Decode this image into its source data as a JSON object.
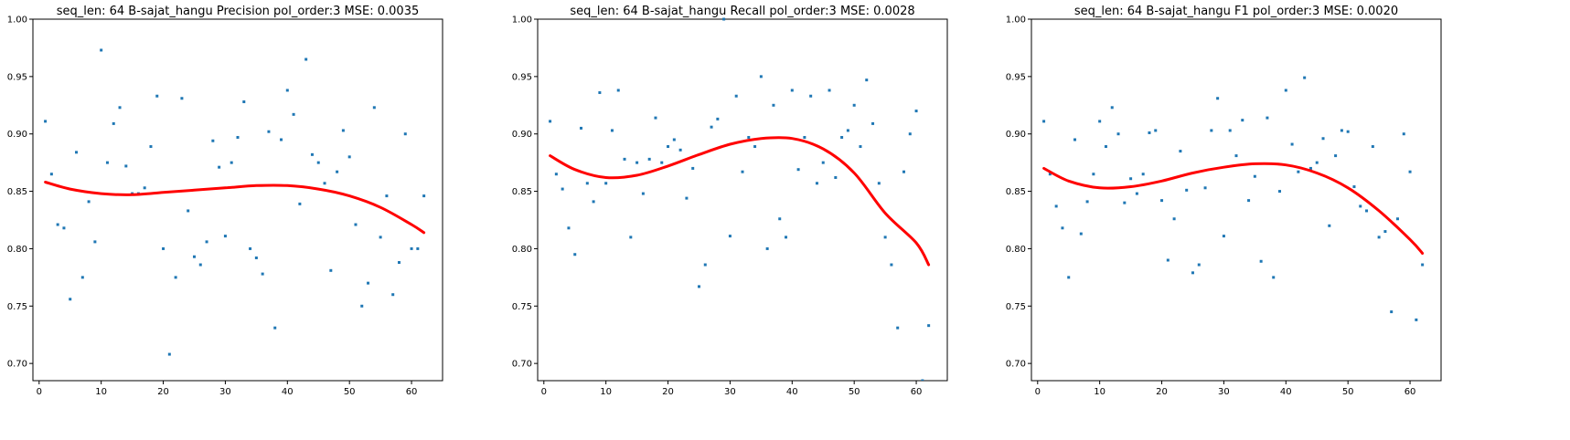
{
  "chart_data": [
    {
      "type": "scatter",
      "title": "seq_len: 64    B-sajat_hangu   Precision   pol_order:3   MSE: 0.0035",
      "xlim": [
        -1,
        65
      ],
      "ylim": [
        0.685,
        1.0
      ],
      "xticks": [
        0,
        10,
        20,
        30,
        40,
        50,
        60
      ],
      "yticks": [
        0.7,
        0.75,
        0.8,
        0.85,
        0.9,
        0.95,
        1.0
      ],
      "grid": false,
      "series": [
        {
          "kind": "points",
          "color": "#1f77b4",
          "x": [
            1,
            2,
            3,
            4,
            5,
            6,
            7,
            8,
            9,
            10,
            11,
            12,
            13,
            14,
            15,
            16,
            17,
            18,
            19,
            20,
            21,
            22,
            23,
            24,
            25,
            26,
            27,
            28,
            29,
            30,
            31,
            32,
            33,
            34,
            35,
            36,
            37,
            38,
            39,
            40,
            41,
            42,
            43,
            44,
            45,
            46,
            47,
            48,
            49,
            50,
            51,
            52,
            53,
            54,
            55,
            56,
            57,
            58,
            59,
            60,
            61,
            62
          ],
          "y": [
            0.911,
            0.865,
            0.821,
            0.818,
            0.756,
            0.884,
            0.775,
            0.841,
            0.806,
            0.973,
            0.875,
            0.909,
            0.923,
            0.872,
            0.848,
            0.848,
            0.853,
            0.889,
            0.933,
            0.8,
            0.708,
            0.775,
            0.931,
            0.833,
            0.793,
            0.786,
            0.806,
            0.894,
            0.871,
            0.811,
            0.875,
            0.897,
            0.928,
            0.8,
            0.792,
            0.778,
            0.902,
            0.731,
            0.895,
            0.938,
            0.917,
            0.839,
            0.965,
            0.882,
            0.875,
            0.857,
            0.781,
            0.867,
            0.903,
            0.88,
            0.821,
            0.75,
            0.77,
            0.923,
            0.81,
            0.846,
            0.76,
            0.788,
            0.9,
            0.8,
            0.8,
            0.846
          ]
        },
        {
          "kind": "fit",
          "color": "#ff0000",
          "x": [
            1,
            5,
            10,
            15,
            20,
            25,
            30,
            35,
            40,
            45,
            50,
            55,
            60,
            62
          ],
          "y": [
            0.858,
            0.852,
            0.848,
            0.847,
            0.849,
            0.851,
            0.853,
            0.855,
            0.855,
            0.852,
            0.846,
            0.836,
            0.821,
            0.814
          ]
        }
      ]
    },
    {
      "type": "scatter",
      "title": "seq_len: 64    B-sajat_hangu   Recall   pol_order:3   MSE: 0.0028",
      "xlim": [
        -1,
        65
      ],
      "ylim": [
        0.685,
        1.0
      ],
      "xticks": [
        0,
        10,
        20,
        30,
        40,
        50,
        60
      ],
      "yticks": [
        0.7,
        0.75,
        0.8,
        0.85,
        0.9,
        0.95,
        1.0
      ],
      "grid": false,
      "series": [
        {
          "kind": "points",
          "color": "#1f77b4",
          "x": [
            1,
            2,
            3,
            4,
            5,
            6,
            7,
            8,
            9,
            10,
            11,
            12,
            13,
            14,
            15,
            16,
            17,
            18,
            19,
            20,
            21,
            22,
            23,
            24,
            25,
            26,
            27,
            28,
            29,
            30,
            31,
            32,
            33,
            34,
            35,
            36,
            37,
            38,
            39,
            40,
            41,
            42,
            43,
            44,
            45,
            46,
            47,
            48,
            49,
            50,
            51,
            52,
            53,
            54,
            55,
            56,
            57,
            58,
            59,
            60,
            61,
            62
          ],
          "y": [
            0.911,
            0.865,
            0.852,
            0.818,
            0.795,
            0.905,
            0.857,
            0.841,
            0.936,
            0.857,
            0.903,
            0.938,
            0.878,
            0.81,
            0.875,
            0.848,
            0.878,
            0.914,
            0.875,
            0.889,
            0.895,
            0.886,
            0.844,
            0.87,
            0.767,
            0.786,
            0.906,
            0.913,
            1.0,
            0.811,
            0.933,
            0.867,
            0.897,
            0.889,
            0.95,
            0.8,
            0.925,
            0.826,
            0.81,
            0.938,
            0.869,
            0.897,
            0.933,
            0.857,
            0.875,
            0.938,
            0.862,
            0.897,
            0.903,
            0.925,
            0.889,
            0.947,
            0.909,
            0.857,
            0.81,
            0.786,
            0.731,
            0.867,
            0.9,
            0.92,
            0.685,
            0.733
          ]
        },
        {
          "kind": "fit",
          "color": "#ff0000",
          "x": [
            1,
            5,
            10,
            15,
            20,
            25,
            30,
            35,
            40,
            45,
            50,
            55,
            60,
            62
          ],
          "y": [
            0.881,
            0.869,
            0.862,
            0.864,
            0.872,
            0.882,
            0.891,
            0.896,
            0.896,
            0.887,
            0.866,
            0.831,
            0.805,
            0.786
          ]
        }
      ]
    },
    {
      "type": "scatter",
      "title": "seq_len: 64    B-sajat_hangu   F1   pol_order:3   MSE: 0.0020",
      "xlim": [
        -1,
        65
      ],
      "ylim": [
        0.685,
        1.0
      ],
      "xticks": [
        0,
        10,
        20,
        30,
        40,
        50,
        60
      ],
      "yticks": [
        0.7,
        0.75,
        0.8,
        0.85,
        0.9,
        0.95,
        1.0
      ],
      "grid": false,
      "series": [
        {
          "kind": "points",
          "color": "#1f77b4",
          "x": [
            1,
            2,
            3,
            4,
            5,
            6,
            7,
            8,
            9,
            10,
            11,
            12,
            13,
            14,
            15,
            16,
            17,
            18,
            19,
            20,
            21,
            22,
            23,
            24,
            25,
            26,
            27,
            28,
            29,
            30,
            31,
            32,
            33,
            34,
            35,
            36,
            37,
            38,
            39,
            40,
            41,
            42,
            43,
            44,
            45,
            46,
            47,
            48,
            49,
            50,
            51,
            52,
            53,
            54,
            55,
            56,
            57,
            58,
            59,
            60,
            61,
            62
          ],
          "y": [
            0.911,
            0.865,
            0.837,
            0.818,
            0.775,
            0.895,
            0.813,
            0.841,
            0.865,
            0.911,
            0.889,
            0.923,
            0.9,
            0.84,
            0.861,
            0.848,
            0.865,
            0.901,
            0.903,
            0.842,
            0.79,
            0.826,
            0.885,
            0.851,
            0.779,
            0.786,
            0.853,
            0.903,
            0.931,
            0.811,
            0.903,
            0.881,
            0.912,
            0.842,
            0.863,
            0.789,
            0.914,
            0.775,
            0.85,
            0.938,
            0.891,
            0.867,
            0.949,
            0.87,
            0.875,
            0.896,
            0.82,
            0.881,
            0.903,
            0.902,
            0.854,
            0.837,
            0.833,
            0.889,
            0.81,
            0.815,
            0.745,
            0.826,
            0.9,
            0.867,
            0.738,
            0.786
          ]
        },
        {
          "kind": "fit",
          "color": "#ff0000",
          "x": [
            1,
            5,
            10,
            15,
            20,
            25,
            30,
            35,
            40,
            45,
            50,
            55,
            60,
            62
          ],
          "y": [
            0.87,
            0.859,
            0.853,
            0.854,
            0.859,
            0.866,
            0.871,
            0.874,
            0.873,
            0.866,
            0.853,
            0.833,
            0.808,
            0.796
          ]
        }
      ]
    }
  ]
}
